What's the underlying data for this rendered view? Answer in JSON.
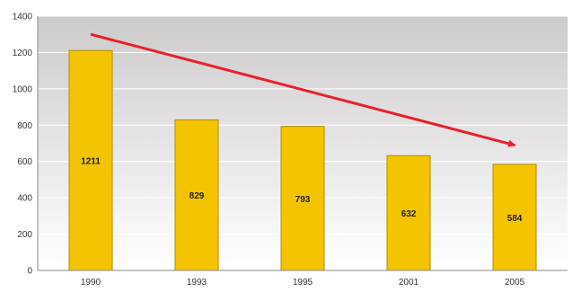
{
  "chart_data": {
    "type": "bar",
    "title": "",
    "xlabel": "",
    "ylabel": "",
    "categories": [
      "1990",
      "1993",
      "1995",
      "2001",
      "2005"
    ],
    "values": [
      1211,
      829,
      793,
      632,
      584
    ],
    "data_labels": [
      "1211",
      "829",
      "793",
      "632",
      "584"
    ],
    "ylim": [
      0,
      1400
    ],
    "yticks": [
      0,
      200,
      400,
      600,
      800,
      1000,
      1200,
      1400
    ],
    "grid": true,
    "legend": "none",
    "annotations": [
      {
        "type": "trend-arrow",
        "from": {
          "x": "1990",
          "y": 1300
        },
        "to": {
          "x": "2005",
          "y": 690
        }
      }
    ]
  },
  "colors": {
    "bar_fill": "#F5C400",
    "bar_stroke": "#B08C00",
    "arrow": "#E8202A",
    "plot_bg_top": "#CDCACA",
    "plot_bg_bottom": "#FFFFFF",
    "gridline": "#FFFFFF",
    "axis": "#888888"
  }
}
